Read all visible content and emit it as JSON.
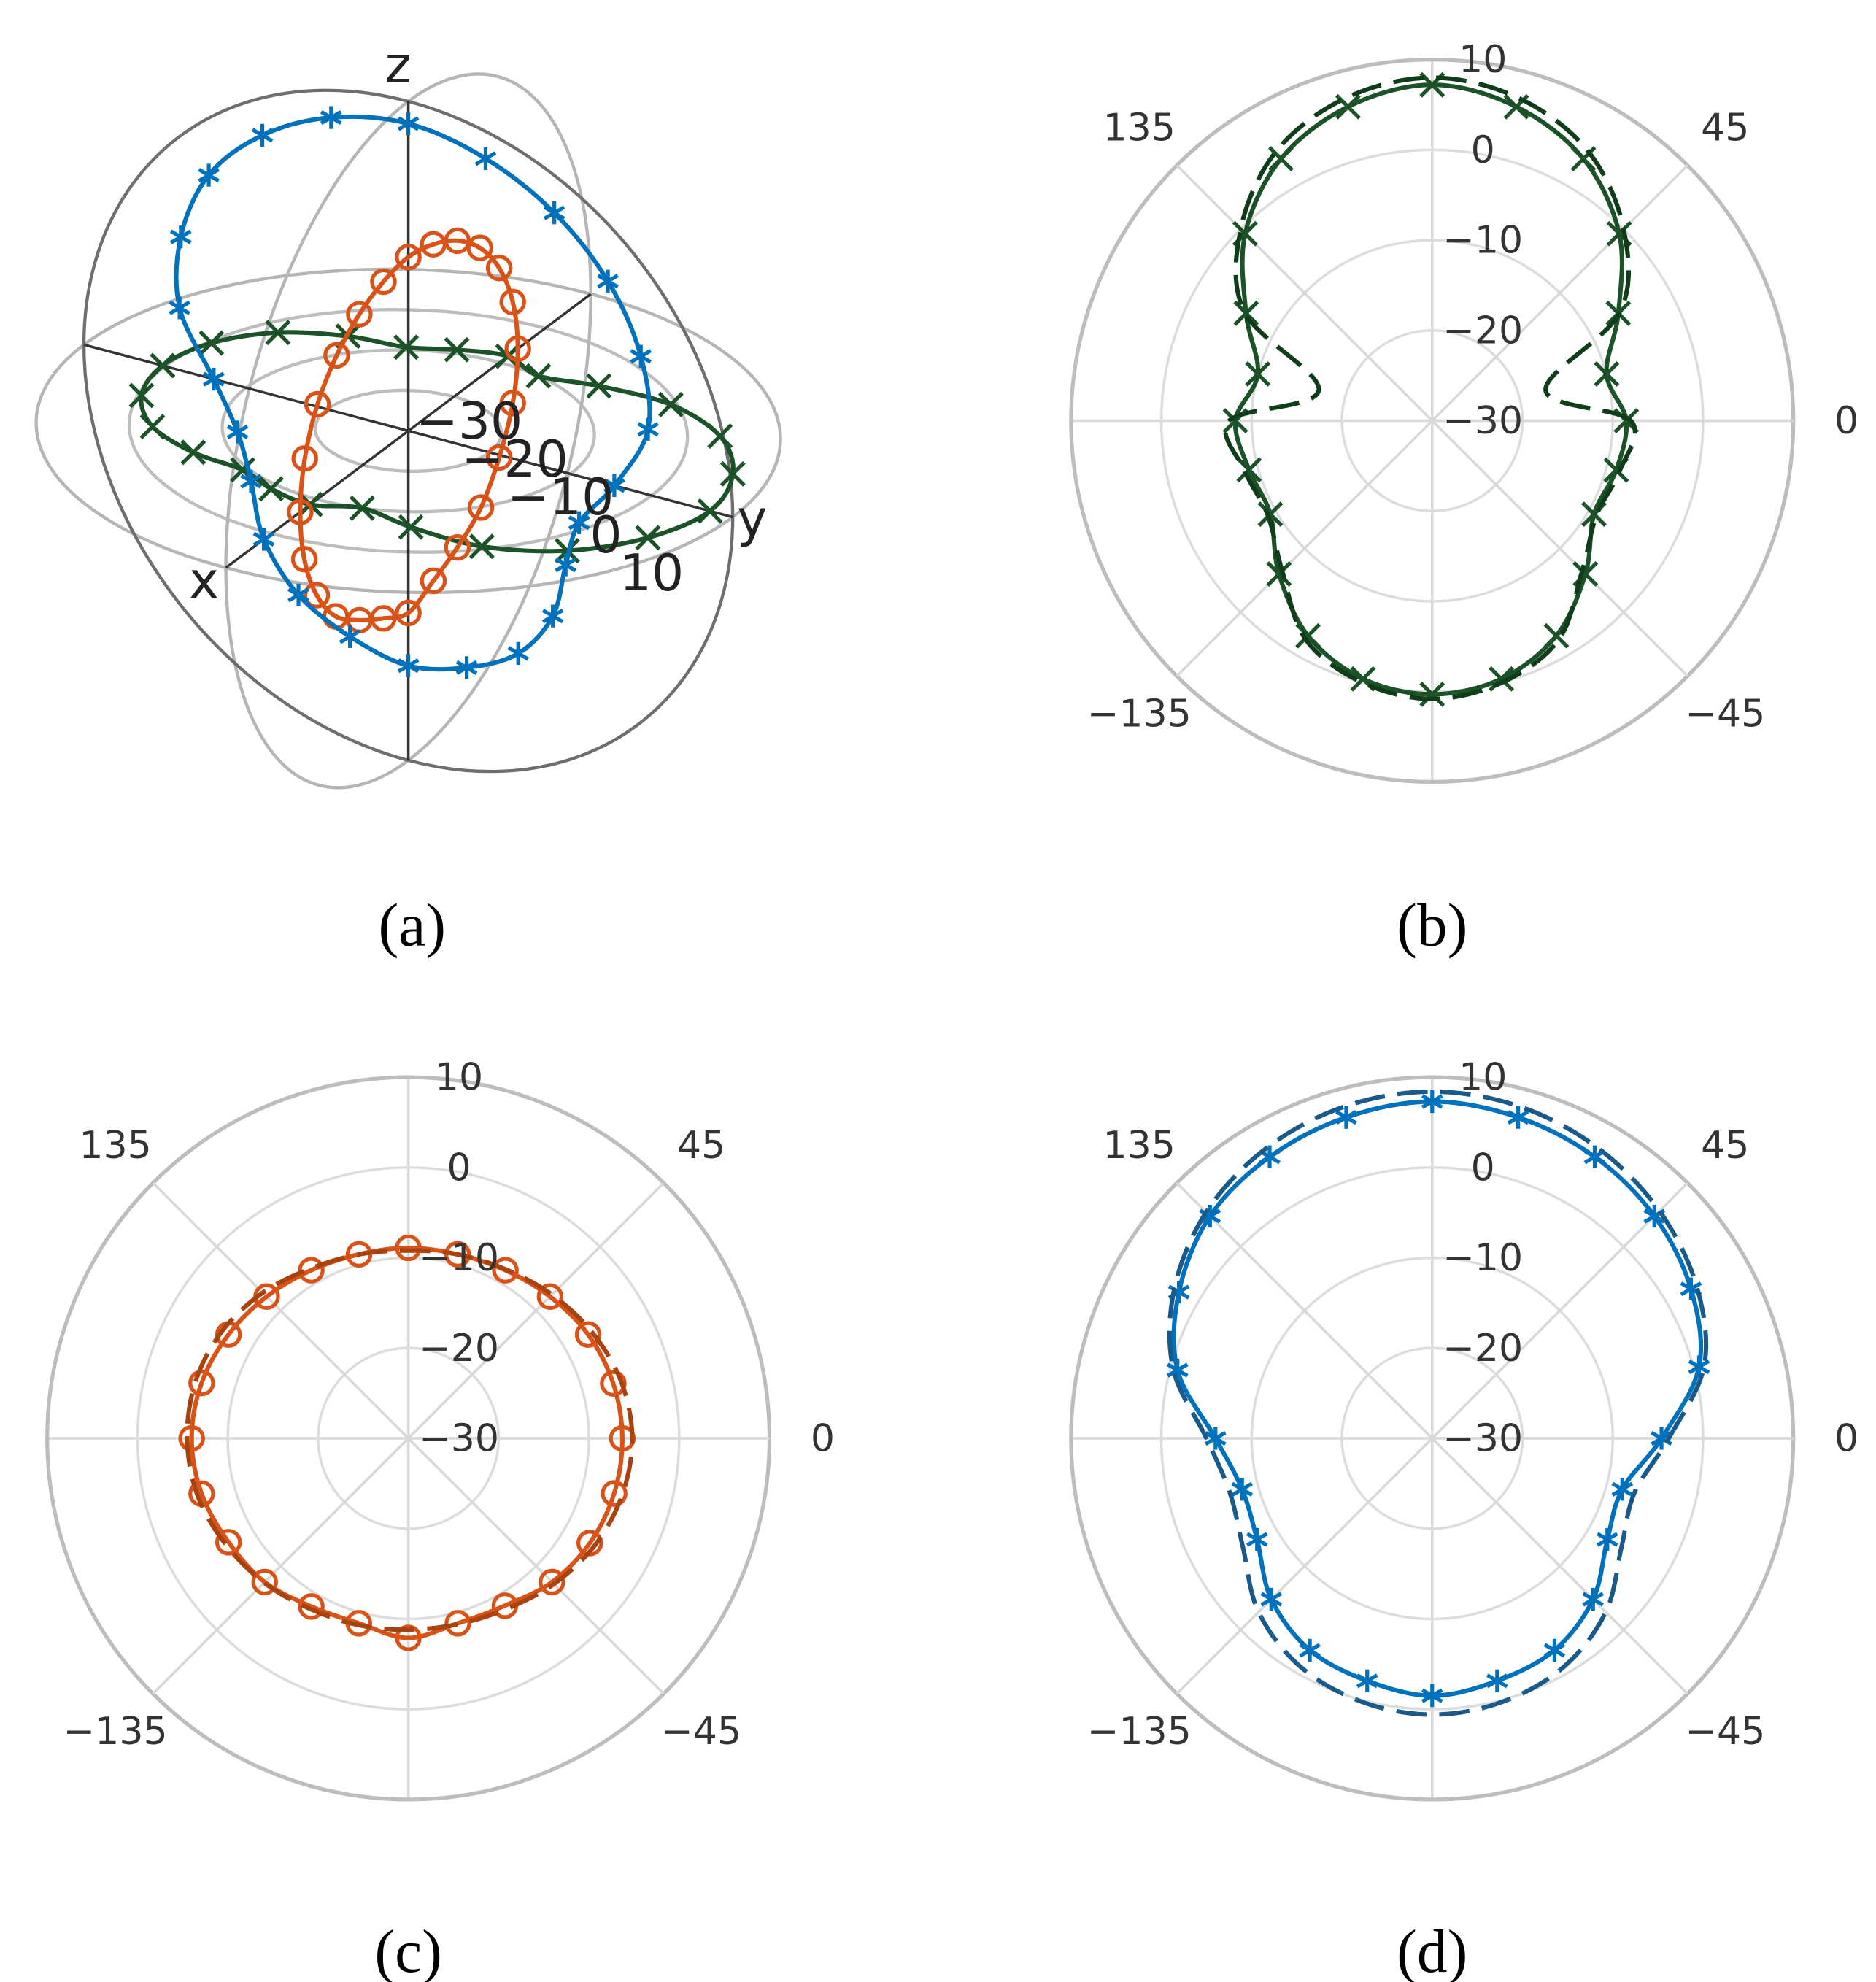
{
  "chart_data": [
    {
      "type": "sphere3d",
      "caption": "(a)",
      "xlabel": "x",
      "ylabel": "y",
      "zlabel": "z",
      "rlim": [
        -30,
        10
      ],
      "rticks": [
        {
          "value": -30,
          "label": "−30"
        },
        {
          "value": -20,
          "label": "−20"
        },
        {
          "value": -10,
          "label": "−10"
        },
        0,
        10
      ],
      "x": [
        0,
        15,
        30,
        45,
        60,
        75,
        90,
        105,
        120,
        135,
        150,
        165,
        180,
        195,
        210,
        225,
        240,
        255,
        270,
        285,
        300,
        315,
        330,
        345
      ],
      "series": [
        {
          "color": "#1b5227",
          "marker": "x",
          "plane": "xy",
          "values": [
            -8.5,
            -10,
            -6.2,
            -0.7,
            3.5,
            6,
            7.2,
            6,
            3.5,
            -0.7,
            -6.2,
            -10,
            -8.2,
            -9,
            -9.3,
            -6,
            -2.5,
            -0.4,
            0.3,
            -0.4,
            -2.5,
            -6,
            -9.3,
            -8.9
          ]
        },
        {
          "color": "#d95319",
          "marker": "o",
          "plane": "xz",
          "values": [
            -6.3,
            -6.5,
            -7,
            -7.8,
            -8.5,
            -8.9,
            -8.9,
            -8.9,
            -8.5,
            -7.8,
            -7,
            -6.3,
            -6,
            -6.3,
            -7,
            -7.5,
            -8.5,
            -8.8,
            -7.9,
            -8.8,
            -8.6,
            -7.5,
            -6.8,
            -6.4
          ]
        },
        {
          "color": "#0072bd",
          "marker": "*",
          "plane": "yz",
          "values": [
            -4.6,
            0.6,
            3.1,
            4.8,
            6,
            6.8,
            7.3,
            6.8,
            6,
            4.8,
            2.4,
            -0.8,
            -6,
            -8.2,
            -7.6,
            -4.8,
            -2.9,
            -2.2,
            -1.5,
            -2.2,
            -2.9,
            -4.8,
            -7.6,
            -8.2
          ]
        }
      ]
    },
    {
      "type": "polar",
      "caption": "(b)",
      "rlim": [
        -30,
        10
      ],
      "rticks": [
        {
          "value": -30,
          "label": "−30"
        },
        {
          "value": -20,
          "label": "−20"
        },
        {
          "value": -10,
          "label": "−10"
        },
        0,
        10
      ],
      "thetaticks": [
        135,
        45,
        0,
        {
          "value": -135,
          "label": "−135"
        },
        {
          "value": -45,
          "label": "−45"
        }
      ],
      "angle_grid_step": 45,
      "x": [
        0,
        15,
        30,
        45,
        60,
        75,
        90,
        105,
        120,
        135,
        150,
        165,
        180,
        195,
        210,
        225,
        240,
        255,
        270,
        285,
        300,
        315,
        330,
        345
      ],
      "series": [
        {
          "color": "#1b5227",
          "marker": "x",
          "dashed": false,
          "values": [
            -8.5,
            -10,
            -6.2,
            -0.7,
            3.5,
            6,
            7.2,
            6,
            3.5,
            -0.7,
            -6.2,
            -10,
            -8.2,
            -9,
            -9.3,
            -6,
            -2.5,
            -0.4,
            0.3,
            -0.4,
            -2.5,
            -6,
            -9.3,
            -8.9
          ]
        },
        {
          "color": "#0f3d1a",
          "dashed": true,
          "values": [
            -8,
            -17,
            -6,
            0,
            4.5,
            7,
            8,
            7,
            4.5,
            0,
            -6,
            -17,
            -7.5,
            -8.5,
            -9,
            -6.5,
            -2,
            0,
            0.8,
            0,
            -2,
            -6.5,
            -9,
            -8.5
          ]
        }
      ]
    },
    {
      "type": "polar",
      "caption": "(c)",
      "rlim": [
        -30,
        10
      ],
      "rticks": [
        {
          "value": -30,
          "label": "−30"
        },
        {
          "value": -20,
          "label": "−20"
        },
        {
          "value": -10,
          "label": "−10"
        },
        0,
        10
      ],
      "thetaticks": [
        135,
        45,
        0,
        {
          "value": -135,
          "label": "−135"
        },
        {
          "value": -45,
          "label": "−45"
        }
      ],
      "angle_grid_step": 45,
      "x": [
        0,
        15,
        30,
        45,
        60,
        75,
        90,
        105,
        120,
        135,
        150,
        165,
        180,
        195,
        210,
        225,
        240,
        255,
        270,
        285,
        300,
        315,
        330,
        345
      ],
      "series": [
        {
          "color": "#d95319",
          "marker": "o",
          "dashed": false,
          "values": [
            -6.3,
            -6.5,
            -7,
            -7.8,
            -8.5,
            -8.9,
            -8.9,
            -8.9,
            -8.5,
            -7.8,
            -7,
            -6.3,
            -6,
            -6.3,
            -7,
            -7.5,
            -8.5,
            -8.8,
            -7.9,
            -8.8,
            -8.6,
            -7.5,
            -6.8,
            -6.4
          ]
        },
        {
          "color": "#a8420f",
          "dashed": true,
          "values": [
            -5.2,
            -5.6,
            -6.5,
            -7.5,
            -8.4,
            -8.9,
            -9.2,
            -8.9,
            -8.3,
            -7.2,
            -6.2,
            -5.6,
            -5.5,
            -5.8,
            -6.6,
            -7.4,
            -8.2,
            -8.6,
            -8.8,
            -8.7,
            -8.2,
            -7.2,
            -6.2,
            -5.5
          ]
        }
      ]
    },
    {
      "type": "polar",
      "caption": "(d)",
      "rlim": [
        -30,
        10
      ],
      "rticks": [
        {
          "value": -30,
          "label": "−30"
        },
        {
          "value": -20,
          "label": "−20"
        },
        {
          "value": -10,
          "label": "−10"
        },
        0,
        10
      ],
      "thetaticks": [
        135,
        45,
        0,
        {
          "value": -135,
          "label": "−135"
        },
        {
          "value": -45,
          "label": "−45"
        }
      ],
      "angle_grid_step": 45,
      "x": [
        0,
        15,
        30,
        45,
        60,
        75,
        90,
        105,
        120,
        135,
        150,
        165,
        180,
        195,
        210,
        225,
        240,
        255,
        270,
        285,
        300,
        315,
        330,
        345
      ],
      "series": [
        {
          "color": "#0072bd",
          "marker": "*",
          "dashed": false,
          "values": [
            -4.6,
            0.6,
            3.1,
            4.8,
            6,
            6.8,
            7.3,
            6.8,
            6,
            4.8,
            2.4,
            -0.8,
            -6,
            -8.2,
            -7.6,
            -4.8,
            -2.9,
            -2.2,
            -1.5,
            -2.2,
            -2.9,
            -4.8,
            -7.6,
            -8.2
          ]
        },
        {
          "color": "#1a5a8a",
          "dashed": true,
          "values": [
            -3.8,
            1.2,
            3.8,
            5.6,
            7,
            8,
            8.4,
            8,
            7,
            5.4,
            3,
            -0.3,
            -5,
            -6.8,
            -5.8,
            -2.8,
            -0.8,
            0.2,
            0.6,
            0.2,
            -0.8,
            -2.8,
            -5.8,
            -6.8
          ]
        }
      ]
    }
  ]
}
